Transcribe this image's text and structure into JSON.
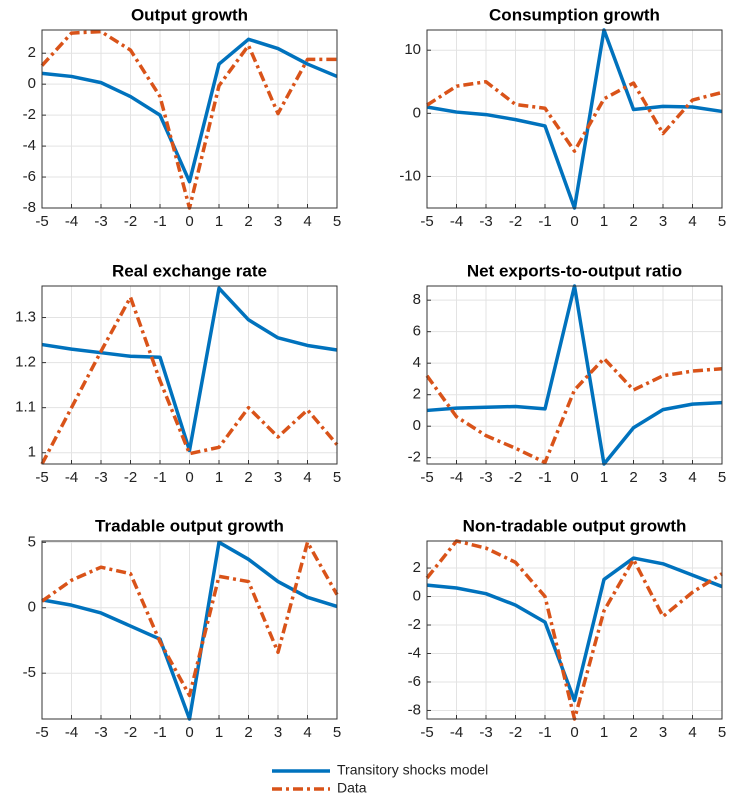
{
  "chart_data": [
    {
      "type": "line",
      "title": "Output growth",
      "x": [
        -5,
        -4,
        -3,
        -2,
        -1,
        0,
        1,
        2,
        3,
        4,
        5
      ],
      "xlim": [
        -5,
        5
      ],
      "xticks": [
        -5,
        -4,
        -3,
        -2,
        -1,
        0,
        1,
        2,
        3,
        4,
        5
      ],
      "ylim": [
        -8,
        3.5
      ],
      "yticks": [
        -8,
        -6,
        -4,
        -2,
        0,
        2
      ],
      "grid": true,
      "series": [
        {
          "name": "Transitory shocks model",
          "color": "#0072bd",
          "style": "solid",
          "values": [
            0.7,
            0.5,
            0.1,
            -0.8,
            -2,
            -6.3,
            1.3,
            2.9,
            2.3,
            1.3,
            0.5
          ]
        },
        {
          "name": "Data",
          "color": "#d95319",
          "style": "dash-dot",
          "values": [
            1.2,
            3.3,
            3.4,
            2.2,
            -0.8,
            -8,
            -0.1,
            2.5,
            -1.9,
            1.6,
            1.6
          ]
        }
      ]
    },
    {
      "type": "line",
      "title": "Consumption growth",
      "x": [
        -5,
        -4,
        -3,
        -2,
        -1,
        0,
        1,
        2,
        3,
        4,
        5
      ],
      "xlim": [
        -5,
        5
      ],
      "xticks": [
        -5,
        -4,
        -3,
        -2,
        -1,
        0,
        1,
        2,
        3,
        4,
        5
      ],
      "ylim": [
        -15,
        13.2
      ],
      "yticks": [
        -10,
        0,
        10
      ],
      "grid": true,
      "series": [
        {
          "color": "#0072bd",
          "style": "solid",
          "values": [
            1,
            0.2,
            -0.2,
            -1,
            -2,
            -15,
            13.2,
            0.6,
            1.1,
            1,
            0.3
          ]
        },
        {
          "color": "#d95319",
          "style": "dash-dot",
          "values": [
            1.3,
            4.3,
            5,
            1.4,
            0.8,
            -6,
            2.3,
            4.8,
            -3.2,
            2.1,
            3.3
          ]
        }
      ]
    },
    {
      "type": "line",
      "title": "Real exchange rate",
      "x": [
        -5,
        -4,
        -3,
        -2,
        -1,
        0,
        1,
        2,
        3,
        4,
        5
      ],
      "xlim": [
        -5,
        5
      ],
      "xticks": [
        -5,
        -4,
        -3,
        -2,
        -1,
        0,
        1,
        2,
        3,
        4,
        5
      ],
      "ylim": [
        0.975,
        1.37
      ],
      "yticks": [
        1,
        1.1,
        1.2,
        1.3
      ],
      "grid": true,
      "series": [
        {
          "color": "#0072bd",
          "style": "solid",
          "values": [
            1.24,
            1.23,
            1.222,
            1.214,
            1.212,
            1.005,
            1.365,
            1.295,
            1.255,
            1.238,
            1.228
          ]
        },
        {
          "color": "#d95319",
          "style": "dash-dot",
          "values": [
            0.975,
            1.1,
            1.225,
            1.345,
            1.16,
            0.998,
            1.012,
            1.1,
            1.035,
            1.095,
            1.018
          ]
        }
      ]
    },
    {
      "type": "line",
      "title": "Net exports-to-output ratio",
      "x": [
        -5,
        -4,
        -3,
        -2,
        -1,
        0,
        1,
        2,
        3,
        4,
        5
      ],
      "xlim": [
        -5,
        5
      ],
      "xticks": [
        -5,
        -4,
        -3,
        -2,
        -1,
        0,
        1,
        2,
        3,
        4,
        5
      ],
      "ylim": [
        -2.4,
        8.9
      ],
      "yticks": [
        -2,
        0,
        2,
        4,
        6,
        8
      ],
      "grid": true,
      "series": [
        {
          "color": "#0072bd",
          "style": "solid",
          "values": [
            1,
            1.15,
            1.2,
            1.25,
            1.1,
            8.9,
            -2.4,
            -0.1,
            1.05,
            1.4,
            1.5
          ]
        },
        {
          "color": "#d95319",
          "style": "dash-dot",
          "values": [
            3.2,
            0.6,
            -0.6,
            -1.4,
            -2.3,
            2.3,
            4.3,
            2.3,
            3.2,
            3.5,
            3.65
          ]
        }
      ]
    },
    {
      "type": "line",
      "title": "Tradable output growth",
      "x": [
        -5,
        -4,
        -3,
        -2,
        -1,
        0,
        1,
        2,
        3,
        4,
        5
      ],
      "xlim": [
        -5,
        5
      ],
      "xticks": [
        -5,
        -4,
        -3,
        -2,
        -1,
        0,
        1,
        2,
        3,
        4,
        5
      ],
      "ylim": [
        -8.5,
        5.1
      ],
      "yticks": [
        -5,
        0,
        5
      ],
      "grid": true,
      "series": [
        {
          "color": "#0072bd",
          "style": "solid",
          "values": [
            0.6,
            0.2,
            -0.4,
            -1.4,
            -2.4,
            -8.5,
            5,
            3.7,
            2,
            0.8,
            0.1
          ]
        },
        {
          "color": "#d95319",
          "style": "dash-dot",
          "values": [
            0.5,
            2.1,
            3.1,
            2.6,
            -2.6,
            -6.7,
            2.4,
            2,
            -3.4,
            5,
            1
          ]
        }
      ]
    },
    {
      "type": "line",
      "title": "Non-tradable output growth",
      "x": [
        -5,
        -4,
        -3,
        -2,
        -1,
        0,
        1,
        2,
        3,
        4,
        5
      ],
      "xlim": [
        -5,
        5
      ],
      "xticks": [
        -5,
        -4,
        -3,
        -2,
        -1,
        0,
        1,
        2,
        3,
        4,
        5
      ],
      "ylim": [
        -8.6,
        3.9
      ],
      "yticks": [
        -8,
        -6,
        -4,
        -2,
        0,
        2
      ],
      "grid": true,
      "series": [
        {
          "color": "#0072bd",
          "style": "solid",
          "values": [
            0.8,
            0.6,
            0.2,
            -0.6,
            -1.8,
            -7.3,
            1.2,
            2.7,
            2.3,
            1.5,
            0.7
          ]
        },
        {
          "color": "#d95319",
          "style": "dash-dot",
          "values": [
            1.3,
            3.9,
            3.4,
            2.4,
            0,
            -8.6,
            -1,
            2.6,
            -1.4,
            0.3,
            1.6
          ]
        }
      ]
    }
  ]
}
